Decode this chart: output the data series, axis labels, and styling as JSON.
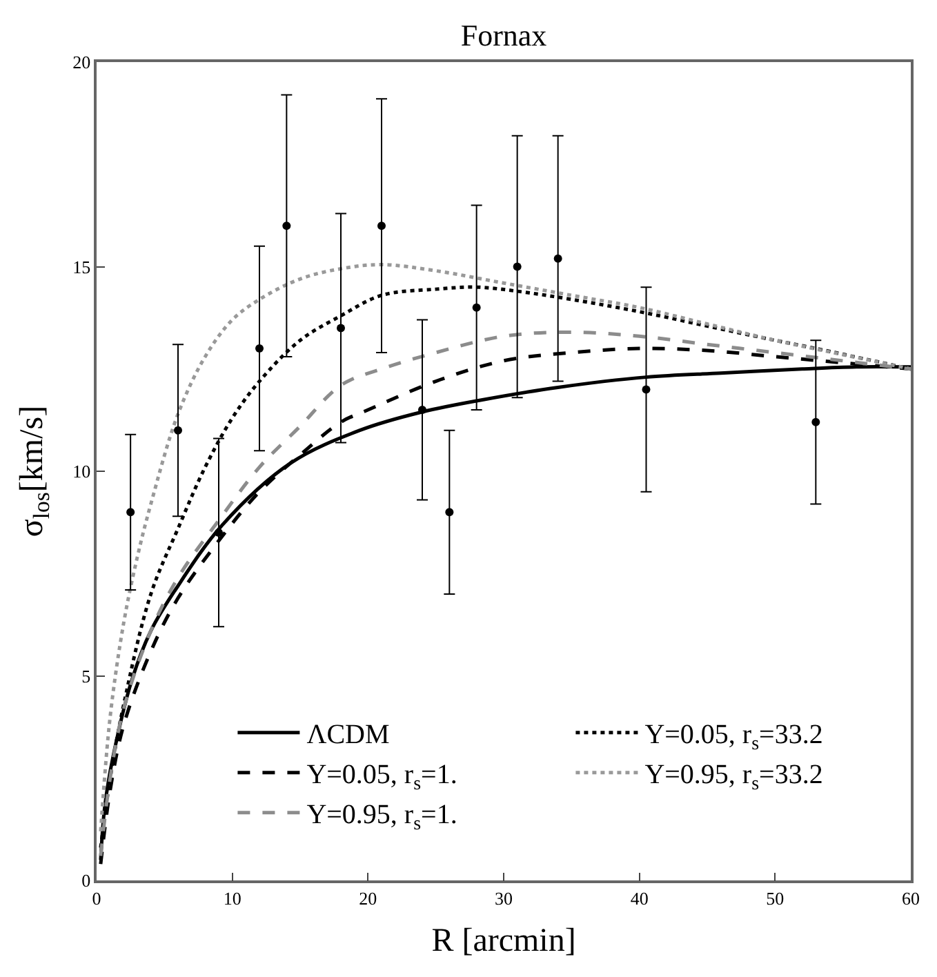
{
  "chart_data": {
    "type": "line",
    "title": "Fornax",
    "xlabel": "R [arcmin]",
    "ylabel": "σ$_{los}$[km/s]",
    "xlim": [
      0,
      60
    ],
    "xticks": [
      0,
      10,
      20,
      30,
      40,
      50,
      60
    ],
    "ylim": [
      0,
      20
    ],
    "yticks": [
      0,
      5,
      10,
      15,
      20
    ],
    "legend": "bottom",
    "series": [
      {
        "name": "ΛCDM",
        "color": "#000000",
        "line_style": "solid",
        "marker": "none",
        "x": [
          0.3,
          0.6,
          1.2,
          2.6,
          4,
          5.9,
          9.3,
          14.3,
          19.4,
          24,
          28.5,
          34,
          40.5,
          46,
          52,
          56,
          60
        ],
        "values": [
          0.5,
          1.8,
          3.0,
          4.9,
          6.1,
          7.15,
          8.7,
          10.2,
          11.0,
          11.45,
          11.75,
          12.05,
          12.3,
          12.4,
          12.5,
          12.55,
          12.55
        ]
      },
      {
        "name": "Y=0.05, r$_{s}$=33.2",
        "color": "#000000",
        "line_style": "dotted",
        "marker": "none",
        "x": [
          0.3,
          1,
          2,
          4,
          6,
          8,
          10,
          12,
          15,
          18,
          21,
          25,
          28,
          31,
          35,
          40,
          45,
          50,
          53,
          60
        ],
        "values": [
          0.8,
          2.5,
          4.3,
          7.0,
          8.6,
          10.1,
          11.3,
          12.2,
          13.2,
          13.8,
          14.3,
          14.45,
          14.5,
          14.4,
          14.2,
          13.9,
          13.55,
          13.2,
          13.0,
          12.5
        ]
      },
      {
        "name": "Y=0.05, r$_{s}$=1.",
        "color": "#000000",
        "line_style": "dashed",
        "marker": "none",
        "x": [
          0.3,
          1,
          2,
          4,
          6,
          9,
          12,
          15,
          18,
          20,
          25,
          30,
          35,
          40,
          45,
          50,
          55,
          60
        ],
        "values": [
          0.4,
          2.2,
          3.8,
          5.6,
          6.9,
          8.3,
          9.5,
          10.4,
          11.2,
          11.5,
          12.2,
          12.7,
          12.9,
          13.0,
          12.95,
          12.8,
          12.65,
          12.5
        ]
      },
      {
        "name": "Y=0.95, r$_{s}$=33.2",
        "color": "#999999",
        "line_style": "dotted",
        "marker": "none",
        "x": [
          0.3,
          1,
          2,
          3,
          4,
          6,
          8,
          10,
          12,
          15,
          18,
          21,
          25,
          30,
          35,
          40,
          45,
          50,
          55,
          60
        ],
        "values": [
          1.2,
          4.0,
          6.3,
          7.9,
          9.2,
          11.4,
          12.8,
          13.7,
          14.2,
          14.7,
          14.95,
          15.05,
          14.9,
          14.6,
          14.3,
          14.0,
          13.6,
          13.2,
          12.85,
          12.5
        ]
      },
      {
        "name": "Y=0.95, r$_{s}$=1.",
        "color": "#8c8c8c",
        "line_style": "dashed",
        "marker": "none",
        "x": [
          0.3,
          1,
          2,
          4,
          6,
          9,
          12,
          15,
          18,
          21,
          25,
          30,
          35,
          40,
          45,
          50,
          55,
          60
        ],
        "values": [
          0.6,
          2.5,
          4.2,
          6.1,
          7.4,
          8.8,
          10.1,
          11.1,
          12.1,
          12.5,
          12.9,
          13.3,
          13.4,
          13.3,
          13.1,
          12.9,
          12.7,
          12.5
        ]
      },
      {
        "type": "scatter",
        "color": "#000000",
        "marker": "circle",
        "x": [
          2.5,
          6,
          9,
          12,
          14,
          18,
          21,
          24,
          26,
          28,
          31,
          34,
          40.5,
          53
        ],
        "values": [
          9.0,
          11.0,
          8.5,
          13.0,
          16.0,
          13.5,
          16.0,
          11.5,
          9.0,
          14.0,
          15.0,
          15.2,
          12.0,
          11.2
        ],
        "errors": [
          [
            7.1,
            10.9
          ],
          [
            8.9,
            13.1
          ],
          [
            6.2,
            10.8
          ],
          [
            10.5,
            15.5
          ],
          [
            12.8,
            19.2
          ],
          [
            10.7,
            16.3
          ],
          [
            12.9,
            19.1
          ],
          [
            9.3,
            13.7
          ],
          [
            7.0,
            11.0
          ],
          [
            11.5,
            16.5
          ],
          [
            11.8,
            18.2
          ],
          [
            12.2,
            18.2
          ],
          [
            9.5,
            14.5
          ],
          [
            9.2,
            13.2
          ]
        ]
      }
    ]
  }
}
